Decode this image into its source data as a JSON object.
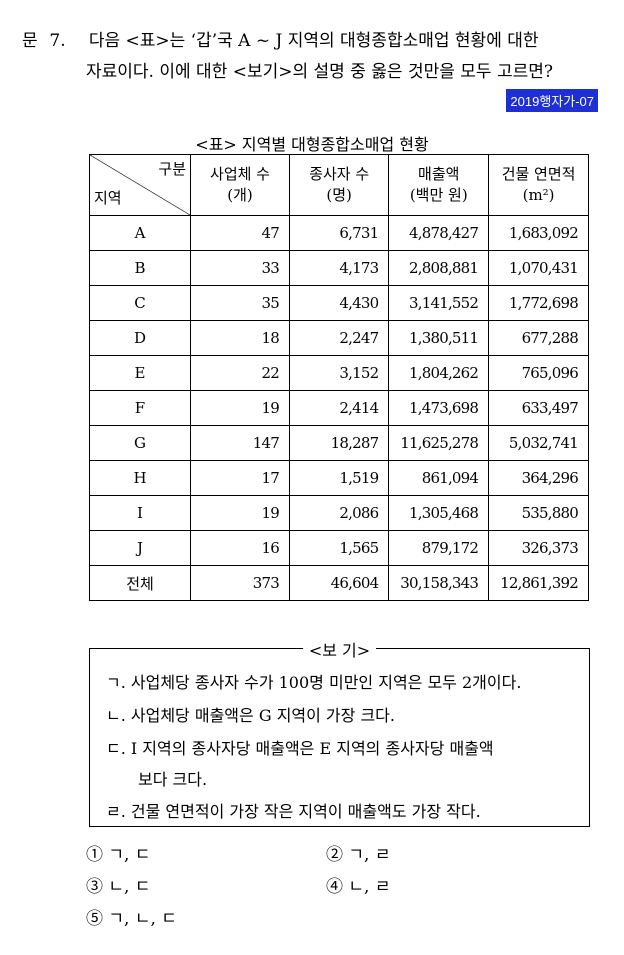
{
  "question": {
    "prefix": "문",
    "number": "7.",
    "line1": "다음 <표>는 ‘갑’국 A ~ J 지역의 대형종합소매업 현황에 대한",
    "line2": "자료이다. 이에 대한 <보기>의 설명 중 옳은 것만을 모두 고르면?"
  },
  "source_tag": "2019행자가-07",
  "table": {
    "title": "<표> 지역별 대형종합소매업 현황",
    "corner_top": "구분",
    "corner_bottom": "지역",
    "headers": [
      {
        "line1": "사업체 수",
        "line2": "(개)"
      },
      {
        "line1": "종사자 수",
        "line2": "(명)"
      },
      {
        "line1": "매출액",
        "line2": "(백만 원)"
      },
      {
        "line1": "건물 연면적",
        "line2": "(m²)"
      }
    ],
    "rows": [
      {
        "region": "A",
        "values": [
          "47",
          "6,731",
          "4,878,427",
          "1,683,092"
        ]
      },
      {
        "region": "B",
        "values": [
          "33",
          "4,173",
          "2,808,881",
          "1,070,431"
        ]
      },
      {
        "region": "C",
        "values": [
          "35",
          "4,430",
          "3,141,552",
          "1,772,698"
        ]
      },
      {
        "region": "D",
        "values": [
          "18",
          "2,247",
          "1,380,511",
          "677,288"
        ]
      },
      {
        "region": "E",
        "values": [
          "22",
          "3,152",
          "1,804,262",
          "765,096"
        ]
      },
      {
        "region": "F",
        "values": [
          "19",
          "2,414",
          "1,473,698",
          "633,497"
        ]
      },
      {
        "region": "G",
        "values": [
          "147",
          "18,287",
          "11,625,278",
          "5,032,741"
        ]
      },
      {
        "region": "H",
        "values": [
          "17",
          "1,519",
          "861,094",
          "364,296"
        ]
      },
      {
        "region": "I",
        "values": [
          "19",
          "2,086",
          "1,305,468",
          "535,880"
        ]
      },
      {
        "region": "J",
        "values": [
          "16",
          "1,565",
          "879,172",
          "326,373"
        ]
      },
      {
        "region": "전체",
        "values": [
          "373",
          "46,604",
          "30,158,343",
          "12,861,392"
        ]
      }
    ]
  },
  "bogi": {
    "title": "<보 기>",
    "items": [
      "ㄱ. 사업체당 종사자 수가 100명 미만인 지역은 모두 2개이다.",
      "ㄴ. 사업체당 매출액은 G 지역이 가장 크다.",
      "ㄷ. I 지역의 종사자당 매출액은 E 지역의 종사자당 매출액",
      "보다 크다.",
      "ㄹ. 건물 연면적이 가장 작은 지역이 매출액도 가장 작다."
    ]
  },
  "options": [
    "① ㄱ, ㄷ",
    "② ㄱ, ㄹ",
    "③ ㄴ, ㄷ",
    "④ ㄴ, ㄹ",
    "⑤ ㄱ, ㄴ, ㄷ"
  ]
}
